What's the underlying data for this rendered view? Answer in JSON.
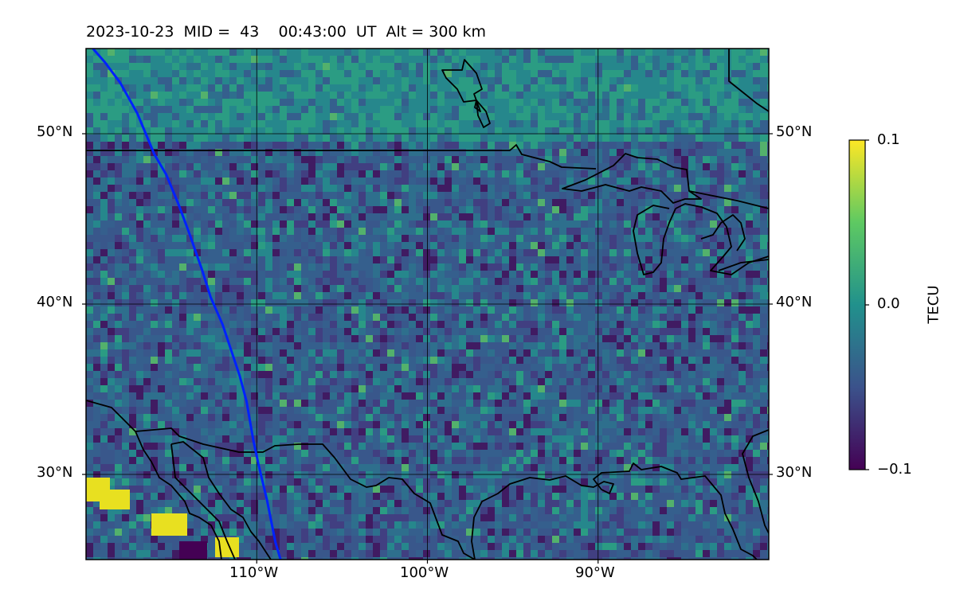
{
  "title": "2023-10-23  MID =  43    00:43:00  UT  Alt = 300 km",
  "map": {
    "lon_range": [
      -120,
      -80
    ],
    "lat_range": [
      25,
      55
    ],
    "lon_ticks": [
      {
        "value": -110,
        "label": "110°W"
      },
      {
        "value": -100,
        "label": "100°W"
      },
      {
        "value": -90,
        "label": "90°W"
      }
    ],
    "lat_ticks": [
      {
        "value": 50,
        "label": "50°N"
      },
      {
        "value": 40,
        "label": "40°N"
      },
      {
        "value": 30,
        "label": "30°N"
      }
    ],
    "grid": true,
    "track_color": "#0022ff",
    "track": [
      [
        -119.6,
        55
      ],
      [
        -118.9,
        54.2
      ],
      [
        -118.0,
        53.0
      ],
      [
        -117.0,
        51.2
      ],
      [
        -116.5,
        50.0
      ],
      [
        -116.0,
        48.8
      ],
      [
        -115.3,
        47.6
      ],
      [
        -114.6,
        45.9
      ],
      [
        -114.0,
        44.3
      ],
      [
        -113.2,
        42.0
      ],
      [
        -112.7,
        40.4
      ],
      [
        -112.0,
        38.8
      ],
      [
        -111.5,
        37.3
      ],
      [
        -111.0,
        35.8
      ],
      [
        -110.6,
        34.3
      ],
      [
        -110.2,
        32.0
      ],
      [
        -109.9,
        30.6
      ],
      [
        -109.4,
        28.5
      ],
      [
        -108.9,
        26.0
      ],
      [
        -108.6,
        25
      ]
    ]
  },
  "colorbar": {
    "label": "TECU",
    "min": -0.1,
    "max": 0.1,
    "ticks": [
      {
        "value": 0.1,
        "label": "0.1"
      },
      {
        "value": 0.0,
        "label": "0.0"
      },
      {
        "value": -0.1,
        "label": "−0.1"
      }
    ],
    "colormap": "viridis",
    "colors": [
      "#440154",
      "#3b528b",
      "#21918c",
      "#5ec962",
      "#fde725"
    ]
  }
}
